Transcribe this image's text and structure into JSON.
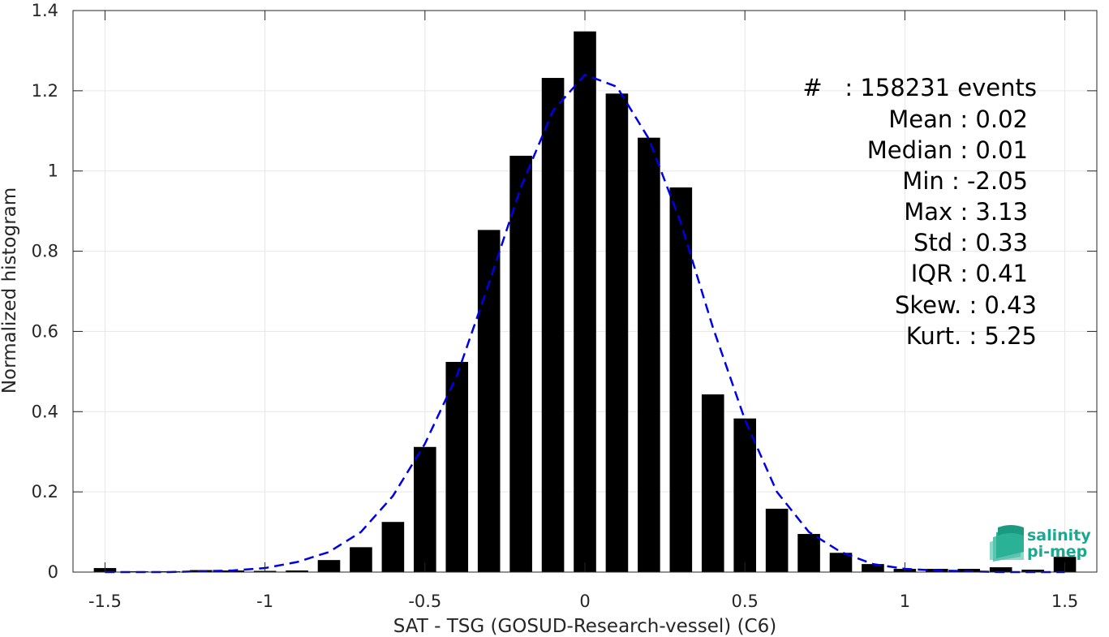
{
  "chart_data": {
    "type": "bar",
    "xlabel": "SAT - TSG (GOSUD-Research-vessel) (C6)",
    "ylabel": "Normalized histogram",
    "xlim": [
      -1.6,
      1.6
    ],
    "ylim": [
      0,
      1.4
    ],
    "x_ticks": [
      -1.5,
      -1,
      -0.5,
      0,
      0.5,
      1,
      1.5
    ],
    "x_tick_labels": [
      "-1.5",
      "-1",
      "-0.5",
      "0",
      "0.5",
      "1",
      "1.5"
    ],
    "y_ticks": [
      0,
      0.2,
      0.4,
      0.6,
      0.8,
      1,
      1.2,
      1.4
    ],
    "y_tick_labels": [
      "0",
      "0.2",
      "0.4",
      "0.6",
      "0.8",
      "1",
      "1.2",
      "1.4"
    ],
    "grid": true,
    "bar_color": "#000000",
    "bin_width": 0.1,
    "bars": {
      "x": [
        -1.5,
        -1.4,
        -1.3,
        -1.2,
        -1.1,
        -1.0,
        -0.9,
        -0.8,
        -0.7,
        -0.6,
        -0.5,
        -0.4,
        -0.3,
        -0.2,
        -0.1,
        0.0,
        0.1,
        0.2,
        0.3,
        0.4,
        0.5,
        0.6,
        0.7,
        0.8,
        0.9,
        1.0,
        1.1,
        1.2,
        1.3,
        1.4,
        1.5
      ],
      "values": [
        0.01,
        0.002,
        0.002,
        0.005,
        0.004,
        0.003,
        0.004,
        0.03,
        0.062,
        0.125,
        0.312,
        0.524,
        0.853,
        1.038,
        1.232,
        1.348,
        1.193,
        1.083,
        0.959,
        0.443,
        0.383,
        0.158,
        0.095,
        0.048,
        0.02,
        0.008,
        0.008,
        0.008,
        0.012,
        0.006,
        0.038
      ]
    },
    "fit_curve": {
      "style": "dashed",
      "color": "#0000e6",
      "x": [
        -1.5,
        -1.4,
        -1.3,
        -1.2,
        -1.1,
        -1.0,
        -0.9,
        -0.8,
        -0.7,
        -0.6,
        -0.5,
        -0.4,
        -0.3,
        -0.2,
        -0.1,
        0.0,
        0.1,
        0.2,
        0.3,
        0.4,
        0.5,
        0.6,
        0.7,
        0.8,
        0.9,
        1.0,
        1.1,
        1.2,
        1.3,
        1.4,
        1.5
      ],
      "y": [
        0.0,
        0.0,
        0.0,
        0.002,
        0.004,
        0.01,
        0.025,
        0.05,
        0.1,
        0.19,
        0.32,
        0.49,
        0.72,
        0.96,
        1.15,
        1.24,
        1.21,
        1.08,
        0.87,
        0.61,
        0.38,
        0.2,
        0.1,
        0.05,
        0.02,
        0.008,
        0.004,
        0.002,
        0.0,
        0.0,
        0.0
      ]
    }
  },
  "stats": {
    "lines": [
      "#   : 158231 events",
      "Mean : 0.02",
      "Median : 0.01",
      "Min : -2.05",
      "Max : 3.13",
      "Std : 0.33",
      "IQR : 0.41",
      "Skew. : 0.43",
      "Kurt. : 5.25"
    ]
  },
  "logo": {
    "line1": "salinity",
    "line2": "pi-mep",
    "color": "#1aa98f"
  }
}
